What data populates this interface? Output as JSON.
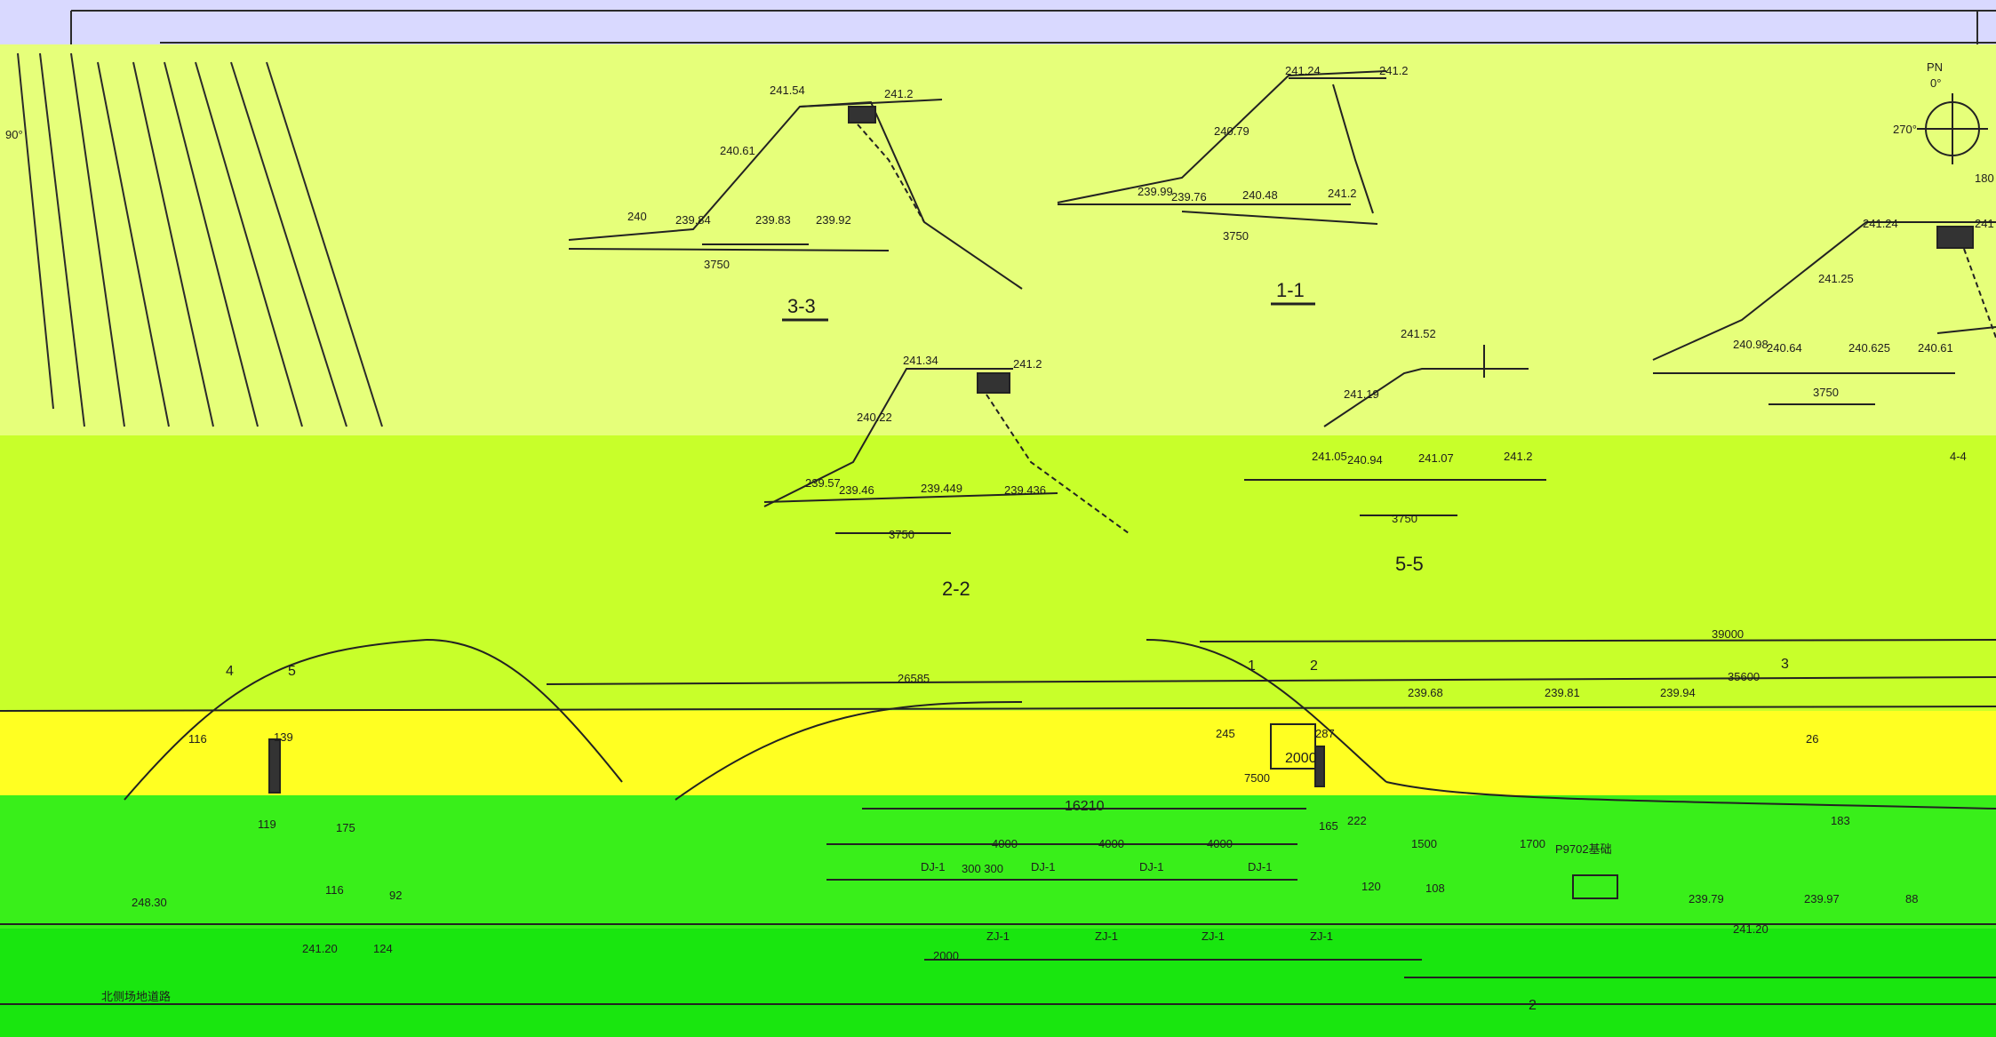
{
  "drawing": {
    "colors": {
      "top_band": "#d9d9ff",
      "yellow_green": "#e6ff7a",
      "lime": "#c8ff2a",
      "yellow": "#ffff22",
      "green": "#39ef1a",
      "green_dark": "#19e60f",
      "line": "#1f1f1f"
    },
    "compass": {
      "north_label": "PN",
      "deg_0": "0°",
      "deg_90": "90°",
      "deg_270": "270°",
      "deg_180": "180"
    },
    "sections": {
      "s33": {
        "title": "3-3",
        "elev_top": "241.54",
        "elev_right": "241.2",
        "elev_slope": "240.61",
        "elev_b1": "239.84",
        "elev_b2": "239.83",
        "elev_b3": "239.92",
        "elev_left": "240",
        "dim": "3750"
      },
      "s11": {
        "title": "1-1",
        "elev_top": "241.24",
        "elev_right": "241.2",
        "elev_slope": "240.79",
        "elev_b1": "239.99",
        "elev_b2": "239.76",
        "elev_b3": "240.48",
        "elev_b4": "241.2",
        "dim": "3750"
      },
      "s22": {
        "title": "2-2",
        "elev_top": "241.34",
        "elev_right": "241.2",
        "elev_slope": "240.22",
        "elev_b1": "239.57",
        "elev_b2": "239.46",
        "elev_b3": "239.449",
        "elev_b4": "239.436",
        "dim": "3750"
      },
      "s55": {
        "title": "5-5",
        "elev_top": "241.52",
        "elev_slope": "241.19",
        "elev_b1": "241.05",
        "elev_b2": "240.94",
        "elev_b3": "241.07",
        "elev_b4": "241.2",
        "dim": "3750"
      },
      "s44": {
        "title": "4-4",
        "elev_top": "241.24",
        "elev_right": "241",
        "elev_slope": "241.25",
        "elev_b1": "240.98",
        "elev_b2": "240.64",
        "elev_b3": "240.625",
        "elev_b4": "240.61",
        "dim": "3750"
      }
    },
    "plan": {
      "dim_total": "39000",
      "dim_left": "26585",
      "dim_right": "35600",
      "dim_mid": "16210",
      "dim_4000_a": "4000",
      "dim_4000_b": "4000",
      "dim_4000_c": "4000",
      "dim_1500": "1500",
      "dim_1700": "1700",
      "dim_2000": "2000",
      "dim_2000b": "2000",
      "dim_7500": "7500",
      "dim_300": "300 300",
      "marker_1": "1",
      "marker_2": "2",
      "marker_3": "3",
      "marker_4": "4",
      "marker_5": "5",
      "marker_2b": "2",
      "label_dj1_a": "DJ-1",
      "label_dj1_b": "DJ-1",
      "label_dj1_c": "DJ-1",
      "label_dj1_d": "DJ-1",
      "label_zj1_a": "ZJ-1",
      "label_zj1_b": "ZJ-1",
      "label_zj1_c": "ZJ-1",
      "label_zj1_d": "ZJ-1",
      "label_p9702": "P9702基础",
      "elev_a": "239.68",
      "elev_b": "239.81",
      "elev_c": "239.94",
      "elev_d": "239.79",
      "elev_e": "239.97",
      "elev_f": "241.20",
      "elev_g": "241.20",
      "elev_h": "248.30",
      "num_245": "245",
      "num_287": "287",
      "num_165": "165",
      "num_222": "222",
      "num_120": "120",
      "num_108": "108",
      "num_88": "88",
      "num_119": "119",
      "num_175": "175",
      "num_116": "116",
      "num_92": "92",
      "num_124": "124",
      "num_139": "139",
      "num_116b": "116",
      "num_26": "26",
      "num_183": "183",
      "bottom_note": "北侧场地道路"
    }
  }
}
